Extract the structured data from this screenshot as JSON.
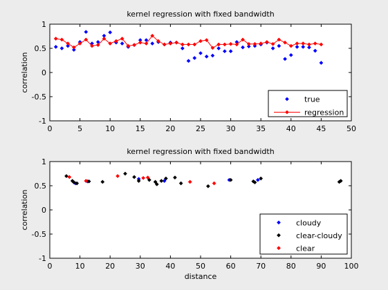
{
  "window": {
    "background": "#ececec"
  },
  "chart_data": [
    {
      "type": "scatter",
      "title": "kernel regression with fixed bandwidth",
      "xlabel": "",
      "ylabel": "correlation",
      "xlim": [
        0,
        50
      ],
      "ylim": [
        -1,
        1
      ],
      "xticks": [
        "0",
        "5",
        "10",
        "15",
        "20",
        "25",
        "30",
        "35",
        "40",
        "45",
        "50"
      ],
      "yticks": [
        "-1",
        "-0.5",
        "0",
        "0.5",
        "1"
      ],
      "legend_position": "bottom-right",
      "legend": [
        {
          "label": "true",
          "color": "#0000ff",
          "marker": "diamond",
          "line": false
        },
        {
          "label": "regression",
          "color": "#ff0000",
          "marker": "diamond",
          "line": true
        }
      ],
      "series": [
        {
          "name": "true",
          "style": "markers",
          "color": "#0000ff",
          "x": [
            1,
            2,
            3,
            4,
            5,
            6,
            7,
            8,
            9,
            10,
            11,
            12,
            13,
            14,
            15,
            16,
            17,
            18,
            19,
            20,
            21,
            22,
            23,
            24,
            25,
            26,
            27,
            28,
            29,
            30,
            31,
            32,
            33,
            34,
            35,
            36,
            37,
            38,
            39,
            40,
            41,
            42,
            43,
            44,
            45
          ],
          "y": [
            0.53,
            0.5,
            0.55,
            0.47,
            0.63,
            0.84,
            0.6,
            0.63,
            0.76,
            0.83,
            0.62,
            0.6,
            0.53,
            0.57,
            0.67,
            0.67,
            0.6,
            0.63,
            0.58,
            0.62,
            0.62,
            0.5,
            0.24,
            0.3,
            0.4,
            0.33,
            0.35,
            0.5,
            0.44,
            0.44,
            0.63,
            0.52,
            0.54,
            0.55,
            0.58,
            0.62,
            0.5,
            0.55,
            0.28,
            0.36,
            0.53,
            0.53,
            0.52,
            0.45,
            0.2
          ]
        },
        {
          "name": "regression",
          "style": "line-markers",
          "color": "#ff0000",
          "x": [
            1,
            2,
            3,
            4,
            5,
            6,
            7,
            8,
            9,
            10,
            11,
            12,
            13,
            14,
            15,
            16,
            17,
            18,
            19,
            20,
            21,
            22,
            23,
            24,
            25,
            26,
            27,
            28,
            29,
            30,
            31,
            32,
            33,
            34,
            35,
            36,
            37,
            38,
            39,
            40,
            41,
            42,
            43,
            44,
            45
          ],
          "y": [
            0.7,
            0.68,
            0.6,
            0.52,
            0.6,
            0.68,
            0.55,
            0.57,
            0.7,
            0.6,
            0.65,
            0.7,
            0.55,
            0.57,
            0.62,
            0.6,
            0.76,
            0.65,
            0.58,
            0.6,
            0.62,
            0.58,
            0.58,
            0.58,
            0.65,
            0.67,
            0.51,
            0.58,
            0.58,
            0.59,
            0.58,
            0.68,
            0.59,
            0.59,
            0.6,
            0.63,
            0.59,
            0.68,
            0.62,
            0.55,
            0.6,
            0.6,
            0.58,
            0.6,
            0.58
          ]
        }
      ]
    },
    {
      "type": "scatter",
      "title": "kernel regression with fixed bandwidth",
      "xlabel": "distance",
      "ylabel": "correlation",
      "xlim": [
        0,
        100
      ],
      "ylim": [
        -1,
        1
      ],
      "xticks": [
        "0",
        "10",
        "20",
        "30",
        "40",
        "50",
        "60",
        "70",
        "80",
        "90",
        "100"
      ],
      "yticks": [
        "-1",
        "-0.5",
        "0",
        "0.5",
        "1"
      ],
      "legend_position": "bottom-right",
      "legend": [
        {
          "label": "cloudy",
          "color": "#0000ff",
          "marker": "diamond",
          "line": false
        },
        {
          "label": "clear-cloudy",
          "color": "#000000",
          "marker": "diamond",
          "line": false
        },
        {
          "label": "clear",
          "color": "#ff0000",
          "marker": "diamond",
          "line": false
        }
      ],
      "series": [
        {
          "name": "cloudy",
          "style": "markers",
          "color": "#0000ff",
          "x": [
            8.5,
            12.5,
            29.5,
            38,
            59.5,
            69
          ],
          "y": [
            0.55,
            0.59,
            0.64,
            0.6,
            0.62,
            0.62
          ]
        },
        {
          "name": "clear-cloudy",
          "style": "markers",
          "color": "#000000",
          "x": [
            5.5,
            7.5,
            8,
            9,
            13,
            17.5,
            25,
            28,
            29.5,
            33,
            35,
            35.5,
            37,
            38.5,
            41.5,
            43.5,
            52.5,
            60,
            67.5,
            68,
            70,
            96,
            96.5
          ],
          "y": [
            0.7,
            0.6,
            0.57,
            0.55,
            0.59,
            0.58,
            0.75,
            0.68,
            0.6,
            0.62,
            0.58,
            0.53,
            0.6,
            0.65,
            0.67,
            0.55,
            0.49,
            0.62,
            0.59,
            0.57,
            0.65,
            0.58,
            0.6
          ]
        },
        {
          "name": "clear",
          "style": "markers",
          "color": "#ff0000",
          "x": [
            6.5,
            12,
            22.5,
            31,
            32.5,
            46.5,
            54.5
          ],
          "y": [
            0.68,
            0.6,
            0.7,
            0.66,
            0.67,
            0.58,
            0.55
          ]
        }
      ]
    }
  ]
}
